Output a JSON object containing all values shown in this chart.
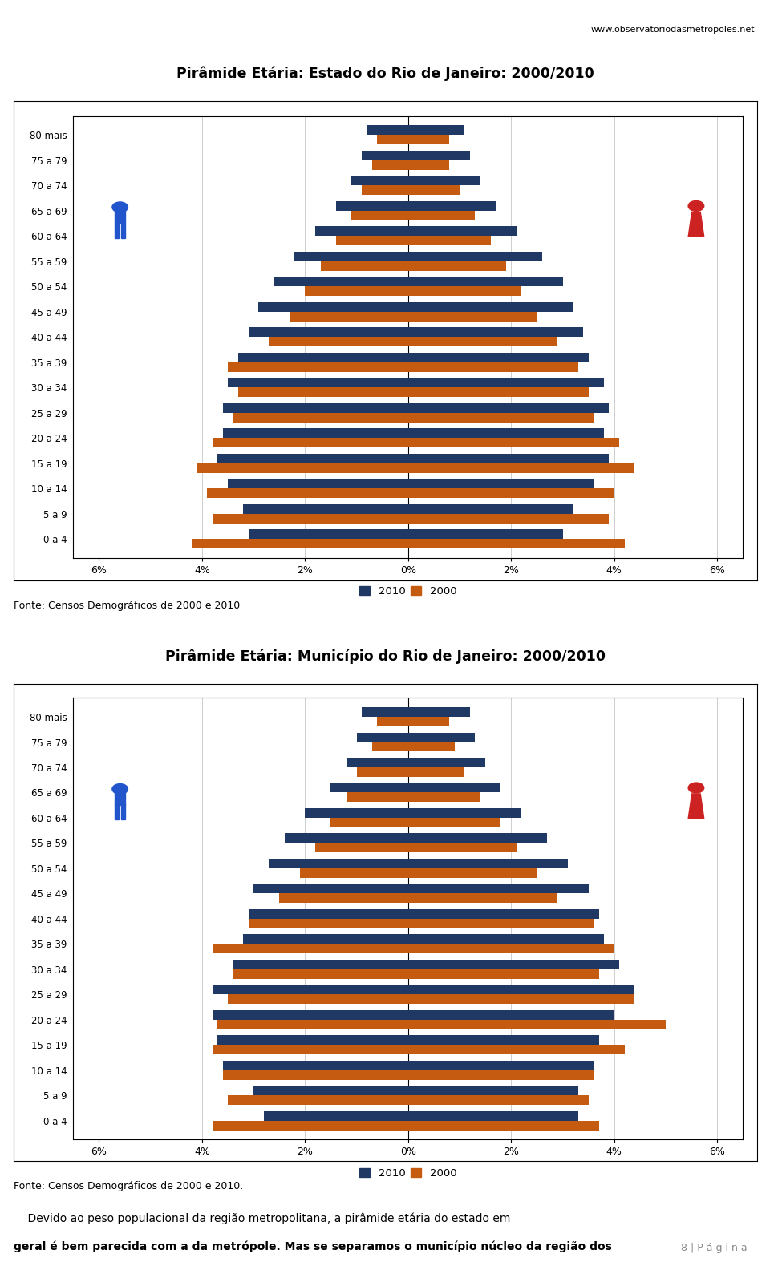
{
  "title1": "Pirâmide Etária: Estado do Rio de Janeiro: 2000/2010",
  "title2": "Pirâmide Etária: Município do Rio de Janeiro: 2000/2010",
  "age_groups": [
    "0 a 4",
    "5 a 9",
    "10 a 14",
    "15 a 19",
    "20 a 24",
    "25 a 29",
    "30 a 34",
    "35 a 39",
    "40 a 44",
    "45 a 49",
    "50 a 54",
    "55 a 59",
    "60 a 64",
    "65 a 69",
    "70 a 74",
    "75 a 79",
    "80 mais"
  ],
  "estado": {
    "male_2010": [
      3.1,
      3.2,
      3.5,
      3.7,
      3.6,
      3.6,
      3.5,
      3.3,
      3.1,
      2.9,
      2.6,
      2.2,
      1.8,
      1.4,
      1.1,
      0.9,
      0.8
    ],
    "male_2000": [
      4.2,
      3.8,
      3.9,
      4.1,
      3.8,
      3.4,
      3.3,
      3.5,
      2.7,
      2.3,
      2.0,
      1.7,
      1.4,
      1.1,
      0.9,
      0.7,
      0.6
    ],
    "female_2010": [
      3.0,
      3.2,
      3.6,
      3.9,
      3.8,
      3.9,
      3.8,
      3.5,
      3.4,
      3.2,
      3.0,
      2.6,
      2.1,
      1.7,
      1.4,
      1.2,
      1.1
    ],
    "female_2000": [
      4.2,
      3.9,
      4.0,
      4.4,
      4.1,
      3.6,
      3.5,
      3.3,
      2.9,
      2.5,
      2.2,
      1.9,
      1.6,
      1.3,
      1.0,
      0.8,
      0.8
    ]
  },
  "municipio": {
    "male_2010": [
      2.8,
      3.0,
      3.6,
      3.7,
      3.8,
      3.8,
      3.4,
      3.2,
      3.1,
      3.0,
      2.7,
      2.4,
      2.0,
      1.5,
      1.2,
      1.0,
      0.9
    ],
    "male_2000": [
      3.8,
      3.5,
      3.6,
      3.8,
      3.7,
      3.5,
      3.4,
      3.8,
      3.1,
      2.5,
      2.1,
      1.8,
      1.5,
      1.2,
      1.0,
      0.7,
      0.6
    ],
    "female_2010": [
      3.3,
      3.3,
      3.6,
      3.7,
      4.0,
      4.4,
      4.1,
      3.8,
      3.7,
      3.5,
      3.1,
      2.7,
      2.2,
      1.8,
      1.5,
      1.3,
      1.2
    ],
    "female_2000": [
      3.7,
      3.5,
      3.6,
      4.2,
      5.0,
      4.4,
      3.7,
      4.0,
      3.6,
      2.9,
      2.5,
      2.1,
      1.8,
      1.4,
      1.1,
      0.9,
      0.8
    ]
  },
  "color_2010": "#1F3864",
  "color_2000": "#C55A11",
  "xlim": 6.5,
  "xticks": [
    -6,
    -4,
    -2,
    0,
    2,
    4,
    6
  ],
  "xticklabels": [
    "6%",
    "4%",
    "2%",
    "0%",
    "2%",
    "4%",
    "6%"
  ],
  "source1": "Fonte: Censos Demográficos de 2000 e 2010",
  "source2": "Fonte: Censos Demográficos de 2000 e 2010.",
  "website": "www.observatoriodasmetropoles.net",
  "footer_line1": "    Devido ao peso populacional da região metropolitana, a pirâmide etária do estado em",
  "footer_line2": "geral é bem parecida com a da metrópole. Mas se separamos o município núcleo da região dos",
  "page_text": "8 | P á g i n a"
}
